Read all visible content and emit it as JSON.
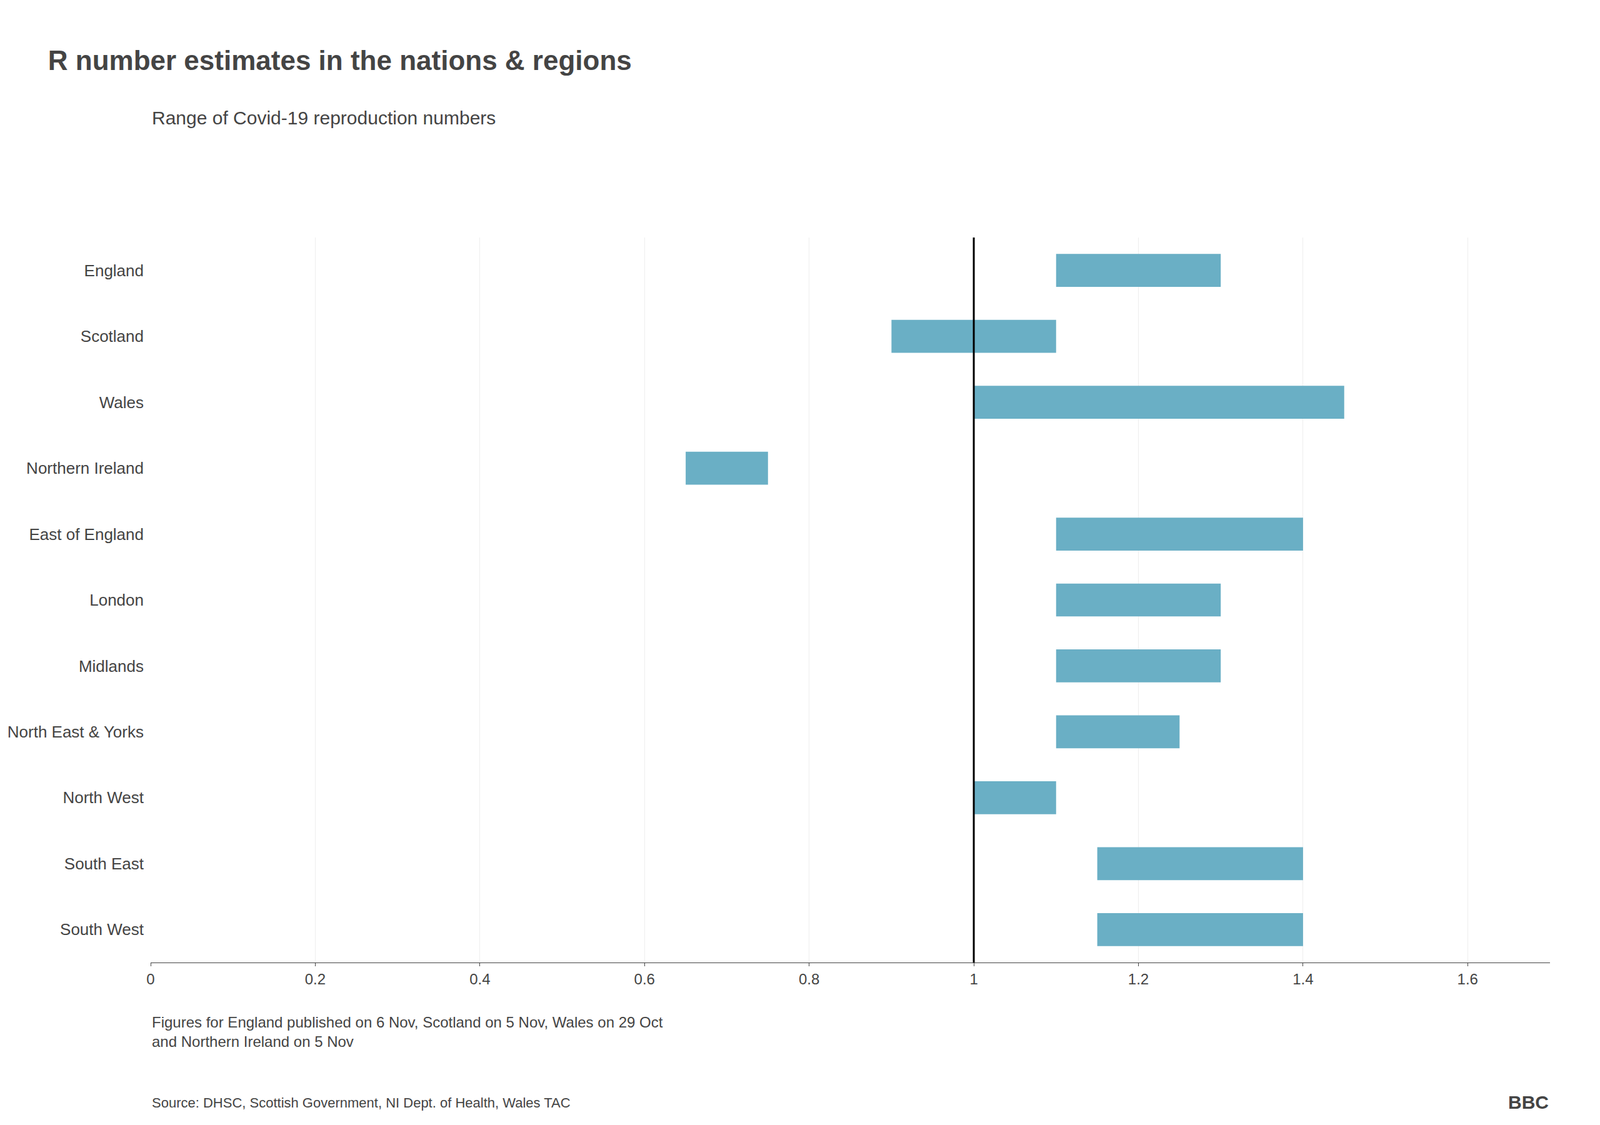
{
  "chart_data": {
    "type": "bar",
    "orientation": "horizontal",
    "title": "R number estimates in the nations & regions",
    "subtitle": "Range of Covid-19 reproduction numbers",
    "footnote": "Figures for England published on 6 Nov, Scotland on 5 Nov, Wales on 29 Oct\nand Northern Ireland on 5 Nov",
    "source": "Source: DHSC, Scottish Government, NI Dept. of Health, Wales TAC",
    "logo_text": "BBC",
    "categories": [
      "England",
      "Scotland",
      "Wales",
      "Northern Ireland",
      "East of England",
      "London",
      "Midlands",
      "North East & Yorks",
      "North West",
      "South East",
      "South West"
    ],
    "low": [
      1.1,
      0.9,
      1.0,
      0.65,
      1.1,
      1.1,
      1.1,
      1.1,
      1.0,
      1.15,
      1.15
    ],
    "high": [
      1.3,
      1.1,
      1.45,
      0.75,
      1.4,
      1.3,
      1.3,
      1.25,
      1.1,
      1.4,
      1.4
    ],
    "color": "#6aafc5",
    "reference_x": 1.0,
    "xlim": [
      0.0,
      1.7
    ],
    "xticks": [
      0,
      0.2,
      0.4,
      0.6,
      0.8,
      1,
      1.2,
      1.4,
      1.6
    ],
    "grid": true
  }
}
